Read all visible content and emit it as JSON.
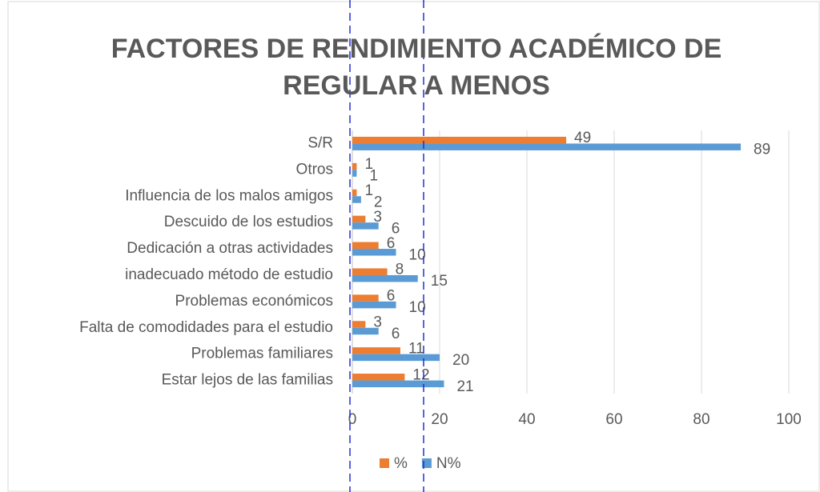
{
  "chart_data": {
    "type": "bar",
    "orientation": "horizontal",
    "title": "FACTORES DE RENDIMIENTO ACADÉMICO DE REGULAR A MENOS",
    "categories": [
      "S/R",
      "Otros",
      "Influencia de los malos amigos",
      "Descuido de los estudios",
      "Dedicación a otras actividades",
      "inadecuado método de estudio",
      "Problemas económicos",
      "Falta de comodidades para el estudio",
      "Problemas familiares",
      "Estar lejos de las familias"
    ],
    "series": [
      {
        "name": "%",
        "color": "#ed7d31",
        "values": [
          49,
          1,
          1,
          3,
          6,
          8,
          6,
          3,
          11,
          12
        ]
      },
      {
        "name": "N%",
        "color": "#5b9bd5",
        "values": [
          89,
          1,
          2,
          6,
          10,
          15,
          10,
          6,
          20,
          21
        ]
      }
    ],
    "xlim": [
      0,
      100
    ],
    "xticks": [
      0,
      20,
      40,
      60,
      80,
      100
    ],
    "grid": true,
    "legend": "bottom"
  }
}
